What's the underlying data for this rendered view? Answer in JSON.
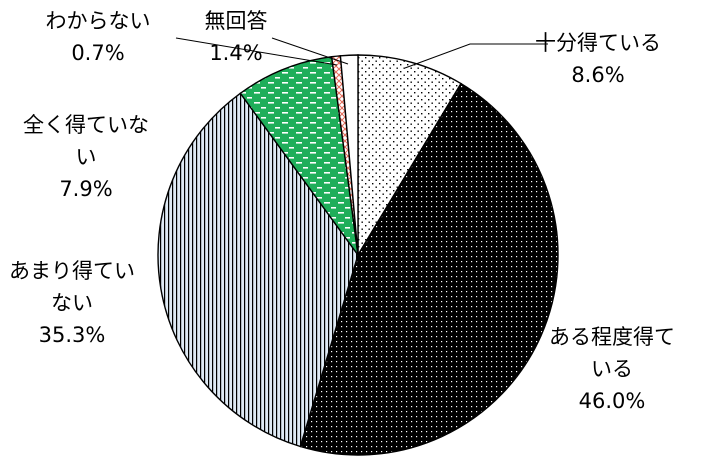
{
  "chart_data": {
    "type": "pie",
    "title": "",
    "start_angle_deg": 0,
    "direction": "clockwise",
    "slices": [
      {
        "label_lines": [
          "十分得ている"
        ],
        "pct": "8.6%",
        "value": 8.6,
        "pattern": "dots-light"
      },
      {
        "label_lines": [
          "ある程度得て",
          "いる"
        ],
        "pct": "46.0%",
        "value": 46.0,
        "pattern": "dots-dark"
      },
      {
        "label_lines": [
          "あまり得てい",
          "ない"
        ],
        "pct": "35.3%",
        "value": 35.3,
        "pattern": "vertical-lines"
      },
      {
        "label_lines": [
          "全く得ていな",
          "い"
        ],
        "pct": "7.9%",
        "value": 7.9,
        "pattern": "green-dashes"
      },
      {
        "label_lines": [
          "わからない"
        ],
        "pct": "0.7%",
        "value": 0.7,
        "pattern": "red-crosshatch"
      },
      {
        "label_lines": [
          "無回答"
        ],
        "pct": "1.4%",
        "value": 1.4,
        "pattern": "white"
      }
    ],
    "colors": {
      "outline": "#000000",
      "dark_fill": "#000000",
      "vertical_line_fill": "#dfeaf5",
      "green": "#1fae5a",
      "red_hatch": "#e36a58"
    }
  }
}
